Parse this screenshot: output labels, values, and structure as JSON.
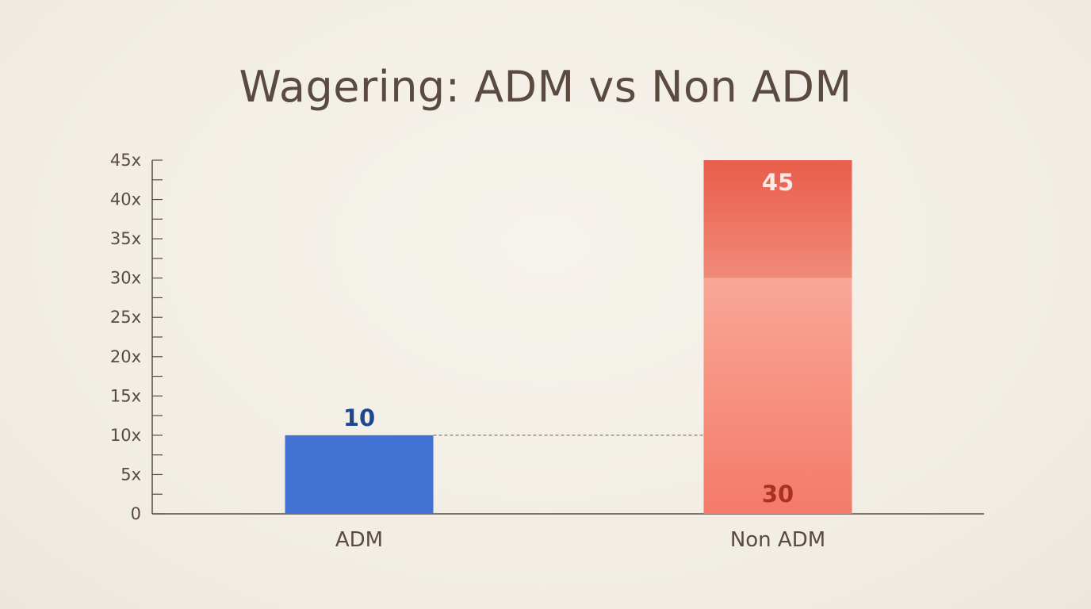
{
  "chart_data": {
    "type": "bar",
    "title": "Wagering: ADM vs Non ADM",
    "xlabel": "",
    "ylabel": "",
    "categories": [
      "ADM",
      "Non ADM"
    ],
    "ylim": [
      0,
      45
    ],
    "y_ticks": [
      {
        "value": 0,
        "label": "0"
      },
      {
        "value": 5,
        "label": "5x"
      },
      {
        "value": 10,
        "label": "10x"
      },
      {
        "value": 15,
        "label": "15x"
      },
      {
        "value": 20,
        "label": "20x"
      },
      {
        "value": 25,
        "label": "25x"
      },
      {
        "value": 30,
        "label": "30x"
      },
      {
        "value": 35,
        "label": "35x"
      },
      {
        "value": 40,
        "label": "40x"
      },
      {
        "value": 45,
        "label": "45x"
      }
    ],
    "bars": [
      {
        "category": "ADM",
        "segments": [
          {
            "from": 0,
            "to": 10,
            "color": "#4272d3",
            "label": "10",
            "label_color": "#1f4690",
            "label_position": "above"
          }
        ]
      },
      {
        "category": "Non ADM",
        "segments": [
          {
            "from": 0,
            "to": 30,
            "color": "#f5806f",
            "label": "30",
            "label_color": "#a8321f",
            "label_position": "inside-bottom"
          },
          {
            "from": 30,
            "to": 45,
            "color": "#ec6a58",
            "label": "45",
            "label_color": "#fbeae4",
            "label_position": "inside-top"
          }
        ]
      }
    ],
    "reference_line": {
      "value": 10,
      "style": "dashed"
    },
    "grid": false
  }
}
